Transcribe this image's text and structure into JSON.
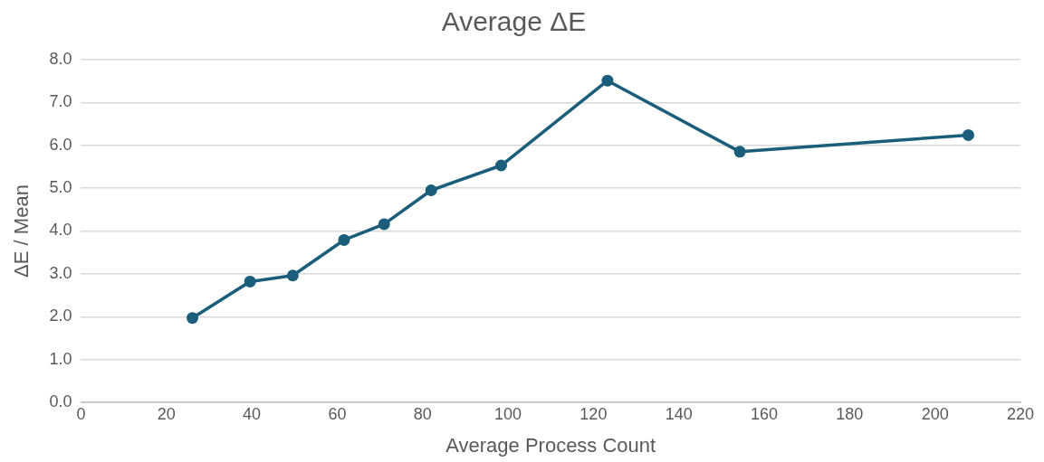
{
  "chart_data": {
    "type": "line",
    "title": "Average ΔE",
    "xlabel": "Average Process Count",
    "ylabel": "ΔE / Mean",
    "x": [
      26.1,
      39.6,
      49.6,
      61.6,
      71.0,
      82.0,
      98.4,
      123.3,
      154.3,
      207.8
    ],
    "series": [
      {
        "color": "#1b5e7b",
        "values": [
          1.97,
          2.82,
          2.96,
          3.79,
          4.16,
          4.95,
          5.53,
          7.51,
          5.85,
          6.24
        ]
      }
    ],
    "xlim": [
      0,
      220
    ],
    "xticks": [
      0,
      20,
      40,
      60,
      80,
      100,
      120,
      140,
      160,
      180,
      200,
      220
    ],
    "ylim": [
      0,
      8
    ],
    "yticks": [
      {
        "value": 0,
        "label": "0.0"
      },
      {
        "value": 1,
        "label": "1.0"
      },
      {
        "value": 2,
        "label": "2.0"
      },
      {
        "value": 3,
        "label": "3.0"
      },
      {
        "value": 4,
        "label": "4.0"
      },
      {
        "value": 5,
        "label": "5.0"
      },
      {
        "value": 6,
        "label": "6.0"
      },
      {
        "value": 7,
        "label": "7.0"
      },
      {
        "value": 8,
        "label": "8.0"
      }
    ],
    "grid": "y",
    "legend": false,
    "marker": "circle",
    "line_style": "solid"
  }
}
